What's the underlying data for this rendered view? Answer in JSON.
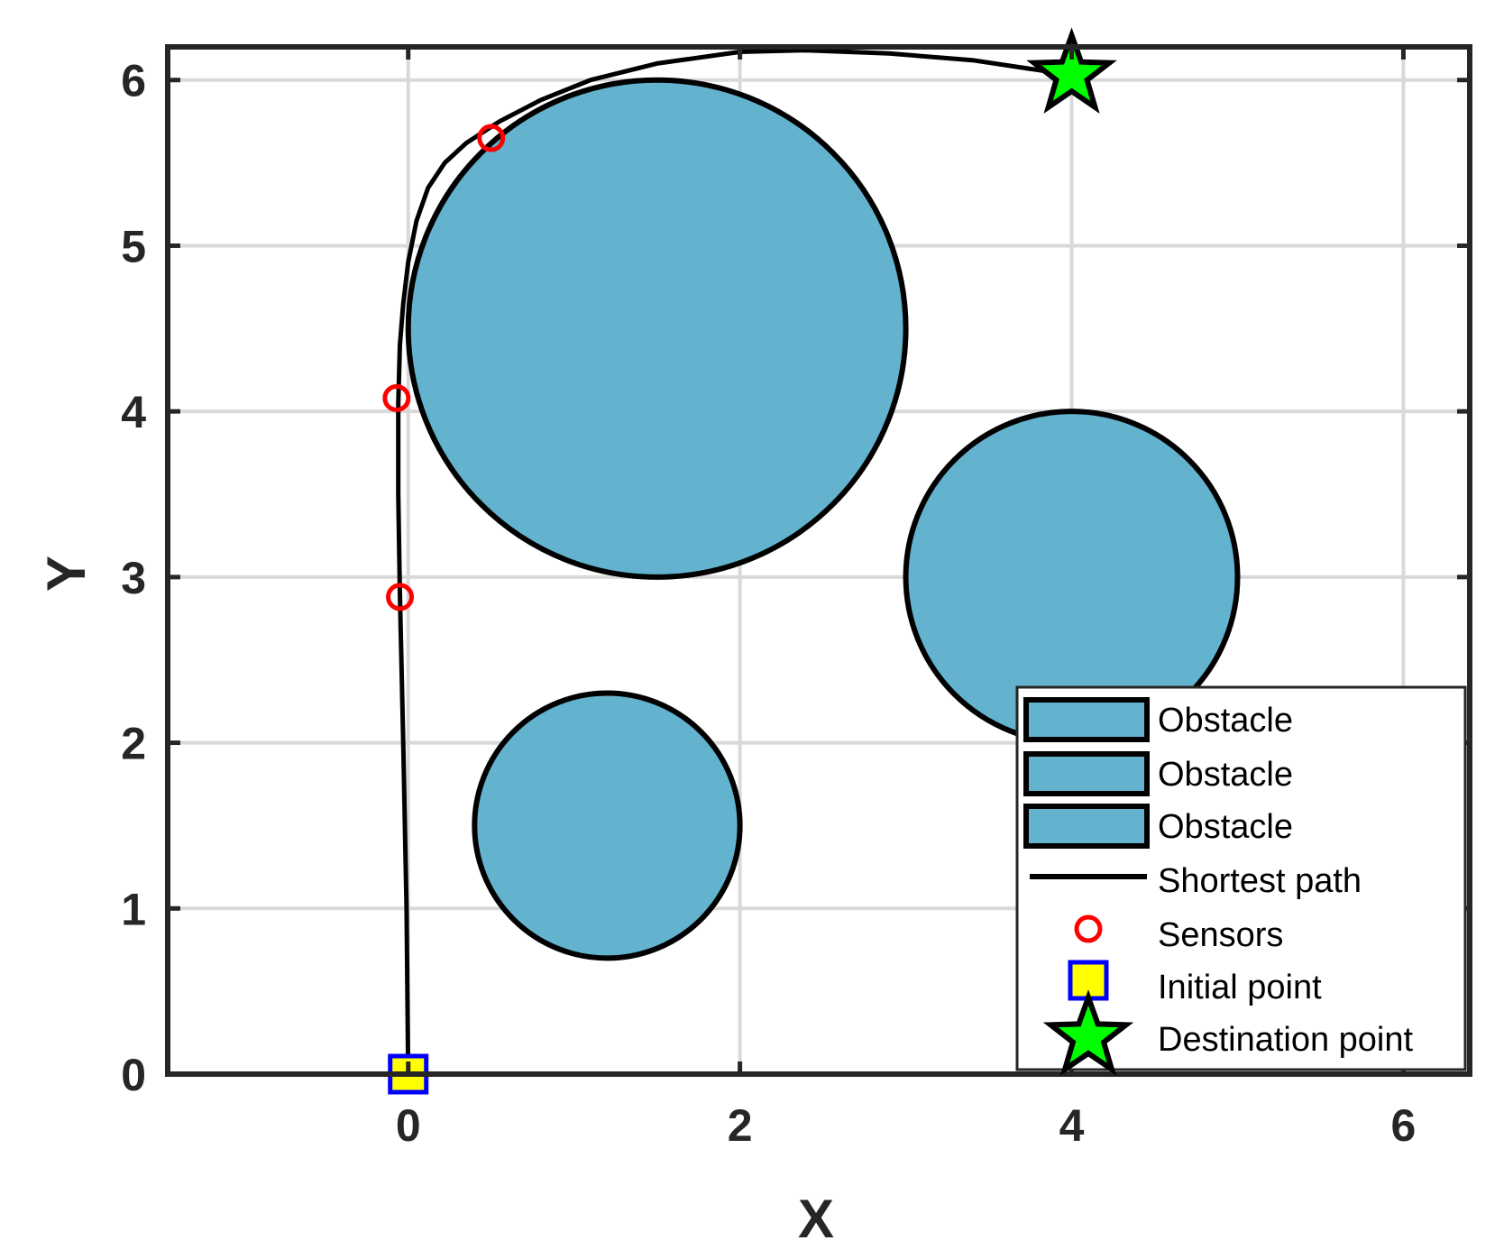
{
  "chart_data": {
    "type": "scatter",
    "xlabel": "X",
    "ylabel": "Y",
    "xlim": [
      -1.45,
      6.4
    ],
    "ylim": [
      0,
      6.2
    ],
    "xticks": [
      0,
      2,
      4,
      6
    ],
    "yticks": [
      0,
      1,
      2,
      3,
      4,
      5,
      6
    ],
    "grid": true,
    "legend_position": "bottom-right",
    "obstacles": [
      {
        "name": "Obstacle",
        "cx": 1.5,
        "cy": 4.5,
        "r": 1.5
      },
      {
        "name": "Obstacle",
        "cx": 4.0,
        "cy": 3.0,
        "r": 1.0
      },
      {
        "name": "Obstacle",
        "cx": 1.2,
        "cy": 1.5,
        "r": 0.8
      }
    ],
    "path": {
      "name": "Shortest path",
      "x": [
        0.0,
        -0.01,
        -0.03,
        -0.05,
        -0.06,
        -0.06,
        -0.05,
        -0.03,
        0.0,
        0.05,
        0.12,
        0.22,
        0.35,
        0.55,
        0.8,
        1.1,
        1.5,
        2.0,
        2.4,
        2.9,
        3.4,
        3.8,
        4.0
      ],
      "y": [
        0.0,
        1.0,
        2.0,
        2.9,
        3.5,
        4.05,
        4.4,
        4.65,
        4.9,
        5.15,
        5.35,
        5.5,
        5.62,
        5.75,
        5.88,
        6.0,
        6.1,
        6.17,
        6.18,
        6.16,
        6.12,
        6.06,
        6.03
      ]
    },
    "sensors": {
      "name": "Sensors",
      "points": [
        [
          0.5,
          5.65
        ],
        [
          -0.07,
          4.08
        ],
        [
          -0.05,
          2.88
        ]
      ],
      "color": "#ff0000"
    },
    "initial_point": {
      "name": "Initial point",
      "x": 0.0,
      "y": 0.0,
      "fill": "#ffff00",
      "edge": "#0000ff"
    },
    "destination_point": {
      "name": "Destination point",
      "x": 4.0,
      "y": 6.03,
      "fill": "#00ff00",
      "edge": "#000000"
    },
    "legend": [
      "Obstacle",
      "Obstacle",
      "Obstacle",
      "Shortest path",
      "Sensors",
      "Initial point",
      "Destination point"
    ],
    "colors": {
      "obstacle_fill": "#63b3cf",
      "obstacle_edge": "#000000",
      "path": "#000000",
      "grid": "#d9d9d9"
    }
  }
}
